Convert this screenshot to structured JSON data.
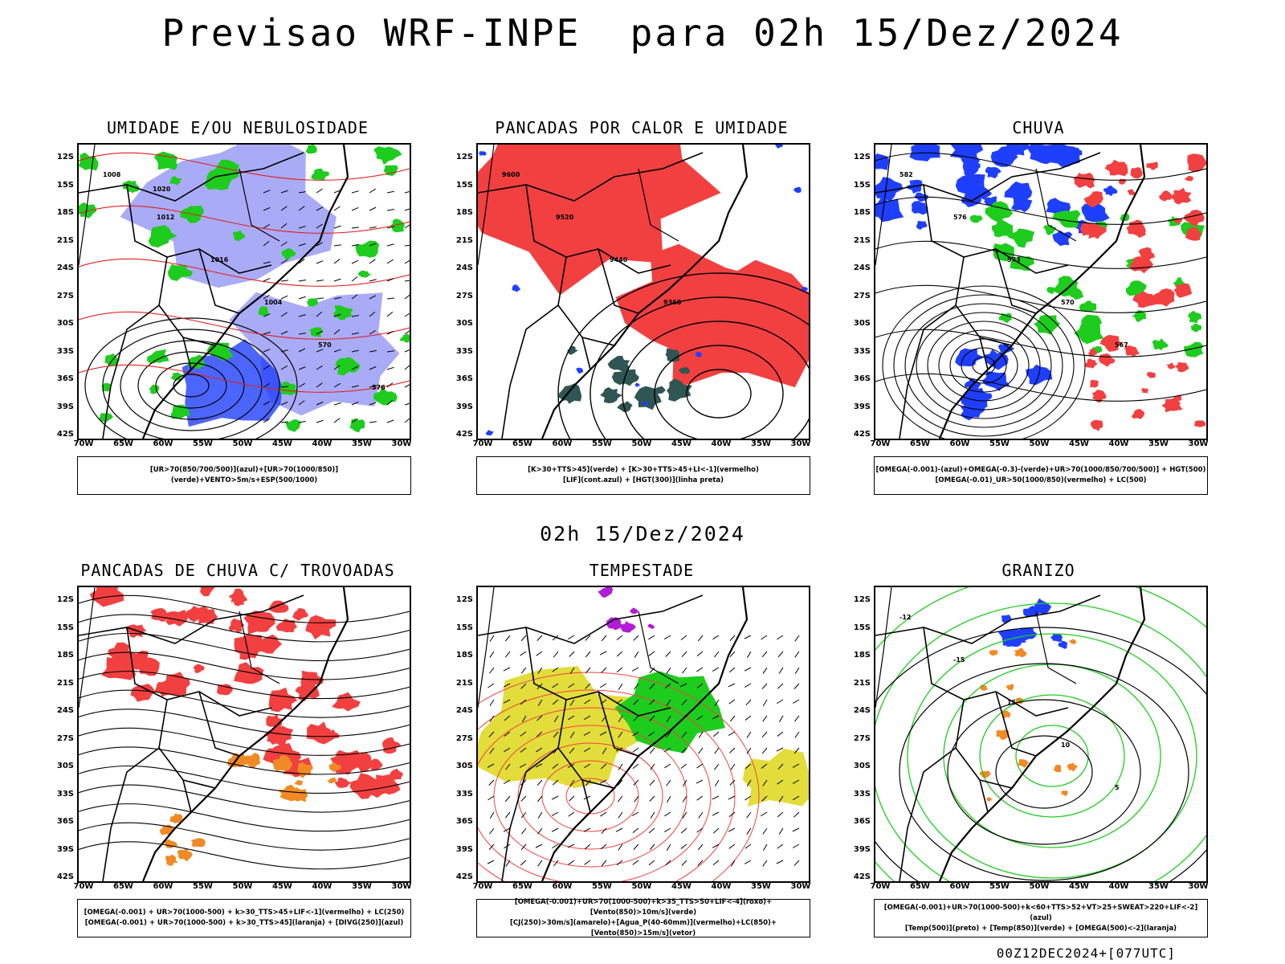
{
  "header": {
    "title": "Previsao WRF-INPE  para 02h 15/Dez/2024",
    "subtitle": "02h 15/Dez/2024"
  },
  "footer": {
    "run": "00Z12DEC2024+[077UTC]"
  },
  "axes": {
    "lat_labels": [
      "12S",
      "15S",
      "18S",
      "21S",
      "24S",
      "27S",
      "30S",
      "33S",
      "36S",
      "39S",
      "42S"
    ],
    "lon_labels": [
      "70W",
      "65W",
      "60W",
      "55W",
      "50W",
      "45W",
      "40W",
      "35W",
      "30W"
    ]
  },
  "colors": {
    "red": "#f24040",
    "blue": "#1f3fff",
    "green": "#1ecc1e",
    "darkteal": "#2f5554",
    "lightblue": "#9b9cf5",
    "orange": "#f08a24",
    "yellow": "#e2dd3a",
    "purple": "#b21cd6"
  },
  "panels": [
    {
      "id": "umidade",
      "title": "UMIDADE E/OU NEBULOSIDADE",
      "legend": [
        "[UR>70(850/700/500)](azul)+[UR>70(1000/850)](verde)+VENTO>5m/s+ESP(500/1000)"
      ],
      "contour_labels": [
        "1008",
        "1012",
        "1016",
        "1004",
        "570",
        "576",
        "1020"
      ]
    },
    {
      "id": "pancadas-calor",
      "title": "PANCADAS POR CALOR E UMIDADE",
      "legend": [
        "[K>30+TTS>45](verde) + [K>30+TTS>45+LI<-1](vermelho)",
        "[LIF](cont.azul) + [HGT(300)](linha preta)"
      ],
      "contour_labels": [
        "9600",
        "9520",
        "9440",
        "9360"
      ]
    },
    {
      "id": "chuva",
      "title": "CHUVA",
      "legend": [
        "[OMEGA(-0.001)-(azul)+OMEGA(-0.3)-(verde)+UR>70(1000/850/700/500)] + HGT(500)",
        "[OMEGA(-0.01)_UR>50(1000/850)(vermelho) + LC(500)"
      ],
      "contour_labels": [
        "582",
        "576",
        "573",
        "570",
        "567"
      ]
    },
    {
      "id": "pancadas-trovoadas",
      "title": "PANCADAS DE CHUVA C/ TROVOADAS",
      "legend": [
        "[OMEGA(-0.001) + UR>70(1000-500) + k>30_TTS>45+LIF<-1](vermelho) + LC(250)",
        "[OMEGA(-0.001) + UR>70(1000-500) + k>30_TTS>45](laranja) + [DIVG(250)](azul)"
      ],
      "contour_labels": []
    },
    {
      "id": "tempestade",
      "title": "TEMPESTADE",
      "legend": [
        "[OMEGA(-0.001)+UR>70(1000-500)+k>35_TTS>50+LIF<-4](roxo)+[Vento(850)>10m/s](verde)",
        "[CJ(250)>30m/s](amarelo)+[Agua_P(40-60mm)](vermelho)+LC(850)+[Vento(850)>15m/s](vetor)"
      ],
      "contour_labels": []
    },
    {
      "id": "granizo",
      "title": "GRANIZO",
      "legend": [
        "[OMEGA(-0.001)+UR>70(1000-500)+k<60+TTS>52+VT>25+SWEAT>220+LIF<-2](azul)",
        "[Temp(500)](preto) + [Temp(850)](verde) + [OMEGA(500)<-2](laranja)"
      ],
      "contour_labels": [
        "-12",
        "-15",
        "15",
        "10",
        "5"
      ]
    }
  ]
}
